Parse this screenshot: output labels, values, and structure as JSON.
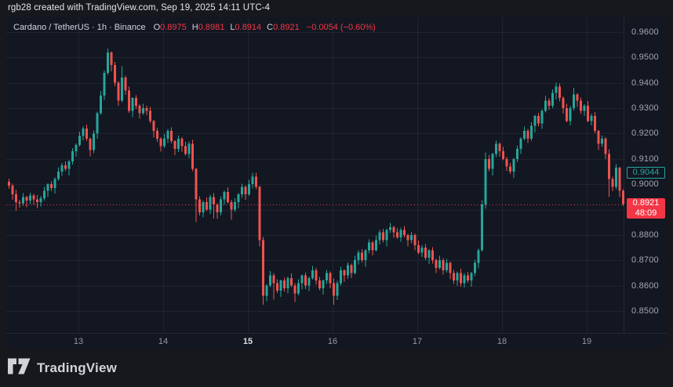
{
  "attribution": "rgb28 created with TradingView.com, Sep 19, 2025 14:11 UTC-4",
  "legend": {
    "title": "Cardano / TetherUS · 1h · Binance",
    "ohlc": [
      [
        "O",
        "0.8975"
      ],
      [
        "H",
        "0.8981"
      ],
      [
        "L",
        "0.8914"
      ],
      [
        "C",
        "0.8921"
      ]
    ],
    "change": "−0.0054 (−0.60%)"
  },
  "price_labels": {
    "last": {
      "price": "0.8921",
      "countdown": "48:09"
    },
    "marked": {
      "price": "0.9044"
    }
  },
  "footer": {
    "brand": "TradingView"
  },
  "colors": {
    "background": "#17181d",
    "chart_background": "#131722",
    "grid": "rgba(255,255,255,0.06)",
    "up": "#26a69a",
    "down": "#ef5350",
    "price_line_red": "#f23645",
    "marked_teal": "#26a69a",
    "axis_text": "#a3a6af",
    "legend_text": "#d1d4dc"
  },
  "chart_data": {
    "type": "candlestick",
    "title": "Cardano / TetherUS",
    "interval": "1h",
    "exchange": "Binance",
    "ylim": [
      0.8414,
      0.964
    ],
    "grid": true,
    "y_ticks": [
      0.96,
      0.95,
      0.94,
      0.93,
      0.92,
      0.91,
      0.9,
      0.89,
      0.88,
      0.87,
      0.86,
      0.85
    ],
    "x_day_labels": [
      "13",
      "14",
      "15",
      "16",
      "17",
      "18",
      "19"
    ],
    "x_day_emphasized": "15",
    "current_price": 0.8921,
    "marked_price": 0.9044,
    "last_candle": {
      "o": 0.8975,
      "h": 0.8981,
      "l": 0.8914,
      "c": 0.8921
    },
    "first_open": 0.901,
    "closes": [
      0.8995,
      0.896,
      0.893,
      0.8925,
      0.895,
      0.8935,
      0.8955,
      0.894,
      0.893,
      0.8945,
      0.8975,
      0.9,
      0.8985,
      0.902,
      0.905,
      0.9075,
      0.906,
      0.909,
      0.913,
      0.9155,
      0.919,
      0.922,
      0.918,
      0.9135,
      0.92,
      0.928,
      0.935,
      0.944,
      0.952,
      0.947,
      0.94,
      0.933,
      0.942,
      0.937,
      0.929,
      0.934,
      0.931,
      0.928,
      0.93,
      0.929,
      0.925,
      0.921,
      0.918,
      0.915,
      0.918,
      0.921,
      0.917,
      0.914,
      0.918,
      0.915,
      0.912,
      0.916,
      0.906,
      0.894,
      0.889,
      0.893,
      0.89,
      0.895,
      0.892,
      0.889,
      0.894,
      0.897,
      0.893,
      0.89,
      0.893,
      0.896,
      0.899,
      0.896,
      0.9,
      0.903,
      0.899,
      0.878,
      0.856,
      0.86,
      0.864,
      0.861,
      0.858,
      0.862,
      0.859,
      0.863,
      0.86,
      0.857,
      0.861,
      0.864,
      0.86,
      0.863,
      0.866,
      0.862,
      0.859,
      0.862,
      0.865,
      0.861,
      0.856,
      0.861,
      0.866,
      0.864,
      0.868,
      0.865,
      0.87,
      0.873,
      0.87,
      0.874,
      0.877,
      0.874,
      0.878,
      0.881,
      0.878,
      0.882,
      0.883,
      0.881,
      0.879,
      0.882,
      0.88,
      0.878,
      0.88,
      0.876,
      0.873,
      0.875,
      0.871,
      0.874,
      0.87,
      0.867,
      0.87,
      0.866,
      0.869,
      0.865,
      0.862,
      0.865,
      0.861,
      0.864,
      0.862,
      0.865,
      0.869,
      0.874,
      0.892,
      0.91,
      0.906,
      0.912,
      0.916,
      0.913,
      0.91,
      0.907,
      0.905,
      0.91,
      0.914,
      0.918,
      0.921,
      0.918,
      0.923,
      0.927,
      0.924,
      0.929,
      0.933,
      0.931,
      0.936,
      0.9385,
      0.934,
      0.93,
      0.925,
      0.93,
      0.9355,
      0.933,
      0.929,
      0.931,
      0.925,
      0.927,
      0.921,
      0.916,
      0.918,
      0.912,
      0.902,
      0.899,
      0.9065,
      0.8975,
      0.8921
    ],
    "wick_cycle": [
      0.0013,
      0.0021,
      0.0006,
      0.0017,
      0.0009,
      0.0025
    ],
    "wick_overrides": {
      "2": {
        "l": 0.8895
      },
      "8": {
        "l": 0.8905
      },
      "28": {
        "h": 0.9535
      },
      "29": {
        "h": 0.9525
      },
      "32": {
        "h": 0.9465
      },
      "53": {
        "l": 0.885
      },
      "58": {
        "l": 0.8865
      },
      "63": {
        "l": 0.886
      },
      "69": {
        "h": 0.9045
      },
      "71": {
        "l": 0.8755
      },
      "72": {
        "l": 0.8525
      },
      "75": {
        "l": 0.8545
      },
      "81": {
        "l": 0.8535
      },
      "92": {
        "l": 0.8525
      },
      "108": {
        "h": 0.8848
      },
      "128": {
        "l": 0.8595
      },
      "135": {
        "h": 0.9125
      },
      "155": {
        "h": 0.94
      },
      "160": {
        "h": 0.938
      },
      "170": {
        "l": 0.895
      },
      "172": {
        "h": 0.908
      },
      "174": {
        "h": 0.8981,
        "l": 0.8914
      }
    }
  }
}
